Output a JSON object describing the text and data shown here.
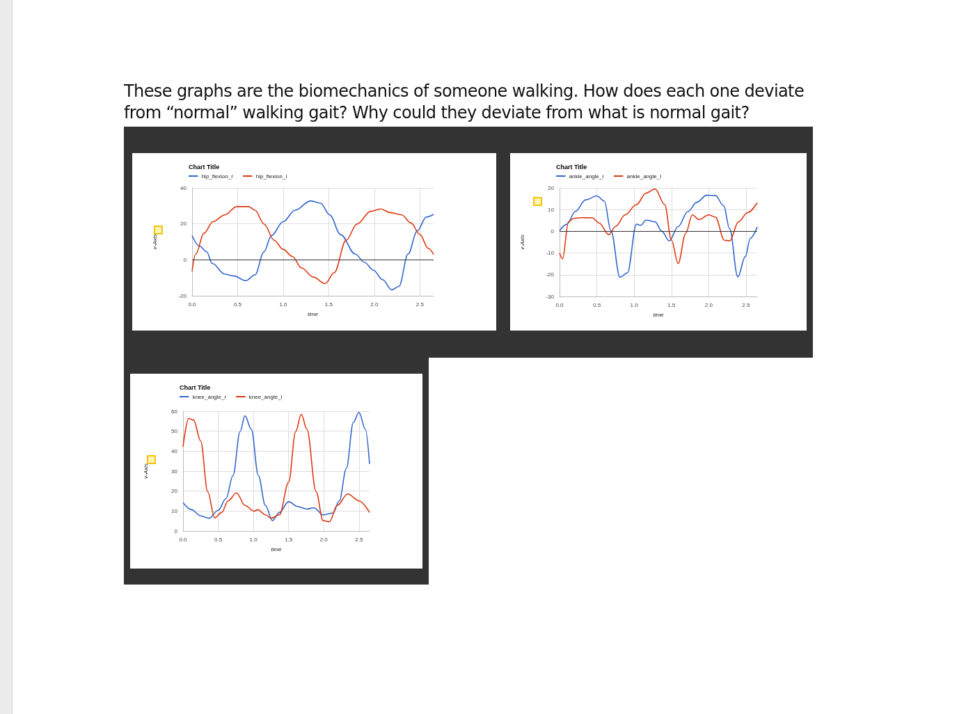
{
  "chart_data": [
    {
      "type": "line",
      "title": "Chart Title",
      "xlabel": "time",
      "ylabel": "v-Axis",
      "annotations": [
        "These graphs are the biomechanics of someone walking. How does each one deviate from “normal” walking gait? Why could they deviate from what is normal gait?"
      ],
      "xlim": [
        0,
        2.65
      ],
      "xticks": [
        {
          "value": 0,
          "label": "0.0"
        },
        {
          "value": 0.5,
          "label": "0.5"
        },
        {
          "value": 1,
          "label": "1.0"
        },
        {
          "value": 1.5,
          "label": "1.5"
        },
        {
          "value": 2,
          "label": "2.0"
        },
        {
          "value": 2.5,
          "label": "2.5"
        }
      ],
      "ylim": [
        -20,
        40
      ],
      "yticks": [
        -20,
        0,
        20,
        40
      ],
      "grid": true,
      "legend": "top left",
      "marker": "none",
      "line_style": "solid",
      "ref_lines": [
        {
          "axis": "y",
          "value": 0,
          "color": "#333333"
        }
      ],
      "series": [
        {
          "name": "hip_flexion_r",
          "color": "#3366cc",
          "x": [
            0,
            0.08,
            0.16,
            0.22,
            0.36,
            0.46,
            0.59,
            0.69,
            0.79,
            0.87,
            1.0,
            1.13,
            1.3,
            1.41,
            1.51,
            1.63,
            1.79,
            1.89,
            1.99,
            2.09,
            2.19,
            2.27,
            2.37,
            2.47,
            2.57,
            2.65
          ],
          "values": [
            13.5,
            7.7,
            4.5,
            -2,
            -8,
            -9,
            -11.6,
            -8.4,
            4.5,
            13.5,
            21.2,
            27.6,
            32.8,
            31.5,
            25,
            14,
            3.2,
            -1.3,
            -5.8,
            -11,
            -16.7,
            -14.8,
            3.2,
            16,
            23.8,
            25.3
          ]
        },
        {
          "name": "hip_flexion_l",
          "color": "#dc3912",
          "x": [
            0,
            0.04,
            0.13,
            0.23,
            0.36,
            0.49,
            0.62,
            0.69,
            0.79,
            0.9,
            1.0,
            1.1,
            1.2,
            1.33,
            1.46,
            1.56,
            1.69,
            1.81,
            1.96,
            2.07,
            2.17,
            2.3,
            2.4,
            2.5,
            2.59,
            2.65
          ],
          "values": [
            -6.4,
            3.2,
            14.8,
            21.2,
            25,
            29.6,
            29.6,
            27.6,
            19.9,
            10.9,
            5.8,
            1.9,
            -4.5,
            -9.6,
            -13.2,
            -7.1,
            10.9,
            19.9,
            27,
            28.3,
            26.3,
            25,
            20.6,
            14.1,
            6.4,
            3
          ]
        }
      ]
    },
    {
      "type": "line",
      "title": "Chart Title",
      "xlabel": "time",
      "ylabel": "v-Axis",
      "xlim": [
        0,
        2.65
      ],
      "xticks": [
        {
          "value": 0,
          "label": "0.0"
        },
        {
          "value": 0.5,
          "label": "0.5"
        },
        {
          "value": 1,
          "label": "1.0"
        },
        {
          "value": 1.5,
          "label": "1.5"
        },
        {
          "value": 2,
          "label": "2.0"
        },
        {
          "value": 2.5,
          "label": "2.5"
        }
      ],
      "ylim": [
        -30,
        20
      ],
      "yticks": [
        -30,
        -20,
        -10,
        0,
        10,
        20
      ],
      "grid": true,
      "legend": "top left",
      "marker": "none",
      "line_style": "solid",
      "ref_lines": [
        {
          "axis": "y",
          "value": 0,
          "color": "#333333"
        }
      ],
      "series": [
        {
          "name": "ankle_angle_r",
          "color": "#3366cc",
          "x": [
            0,
            0.1,
            0.21,
            0.35,
            0.5,
            0.6,
            0.69,
            0.81,
            0.91,
            1.03,
            1.09,
            1.16,
            1.28,
            1.37,
            1.47,
            1.59,
            1.72,
            1.84,
            1.97,
            2.09,
            2.2,
            2.28,
            2.39,
            2.49,
            2.56,
            2.65
          ],
          "values": [
            0.3,
            3.3,
            9.1,
            14.5,
            16.3,
            13.9,
            0.1,
            -21.2,
            -19.1,
            3.3,
            2.8,
            5.2,
            4.4,
            0.1,
            -4.4,
            2.2,
            9.1,
            13.4,
            16.6,
            16.5,
            11.8,
            1.2,
            -21,
            -11.6,
            -3.1,
            2
          ]
        },
        {
          "name": "ankle_angle_l",
          "color": "#dc3912",
          "x": [
            0,
            0.04,
            0.12,
            0.19,
            0.29,
            0.44,
            0.53,
            0.66,
            0.75,
            0.88,
            1.03,
            1.16,
            1.28,
            1.41,
            1.5,
            1.59,
            1.69,
            1.78,
            1.87,
            2.0,
            2.09,
            2.21,
            2.28,
            2.4,
            2.52,
            2.65
          ],
          "values": [
            -10,
            -12.7,
            4.4,
            6,
            6.3,
            6.2,
            3.8,
            -1.5,
            2.2,
            7.6,
            12.3,
            17.6,
            19.5,
            12.3,
            -4.1,
            -14.8,
            -1,
            7.6,
            5.4,
            7.6,
            6.5,
            -4.1,
            -4.4,
            4.4,
            8.6,
            13.1
          ]
        }
      ]
    },
    {
      "type": "line",
      "title": "Chart Title",
      "xlabel": "time",
      "ylabel": "v-Axis",
      "xlim": [
        0,
        2.65
      ],
      "xticks": [
        {
          "value": 0,
          "label": "0.0"
        },
        {
          "value": 0.5,
          "label": "0.5"
        },
        {
          "value": 1,
          "label": "1.0"
        },
        {
          "value": 1.5,
          "label": "1.5"
        },
        {
          "value": 2,
          "label": "2.0"
        },
        {
          "value": 2.5,
          "label": "2.5"
        }
      ],
      "ylim": [
        0,
        60
      ],
      "yticks": [
        0,
        10,
        20,
        30,
        40,
        50,
        60
      ],
      "grid": true,
      "legend": "top left",
      "marker": "none",
      "line_style": "solid",
      "series": [
        {
          "name": "knee_angle_r",
          "color": "#3366cc",
          "x": [
            0,
            0.12,
            0.25,
            0.37,
            0.5,
            0.61,
            0.71,
            0.81,
            0.88,
            0.97,
            1.07,
            1.17,
            1.27,
            1.37,
            1.5,
            1.63,
            1.76,
            1.86,
            1.99,
            2.13,
            2.22,
            2.32,
            2.42,
            2.5,
            2.59,
            2.65
          ],
          "values": [
            14.2,
            10.7,
            7.6,
            6.4,
            10.4,
            16.2,
            27.8,
            49.8,
            57.7,
            51,
            27.8,
            12.8,
            5.2,
            9.3,
            14.7,
            12.2,
            11,
            11.6,
            8.1,
            9,
            15.1,
            31.3,
            54.5,
            59.5,
            51,
            33.6
          ]
        },
        {
          "name": "knee_angle_l",
          "color": "#dc3912",
          "x": [
            0,
            0.08,
            0.15,
            0.25,
            0.35,
            0.45,
            0.55,
            0.64,
            0.76,
            0.88,
            1.01,
            1.06,
            1.17,
            1.25,
            1.37,
            1.5,
            1.6,
            1.68,
            1.76,
            1.89,
            1.99,
            2.08,
            2.19,
            2.34,
            2.5,
            2.65
          ],
          "values": [
            42.3,
            56.4,
            55.6,
            45.2,
            19.7,
            6.6,
            9.3,
            15.1,
            19.1,
            12.8,
            9.9,
            10.7,
            8.1,
            6.4,
            8.1,
            24.4,
            49.8,
            58.5,
            51,
            19.7,
            5.2,
            4.6,
            12.8,
            18.6,
            15.1,
            9.3
          ]
        }
      ]
    }
  ]
}
